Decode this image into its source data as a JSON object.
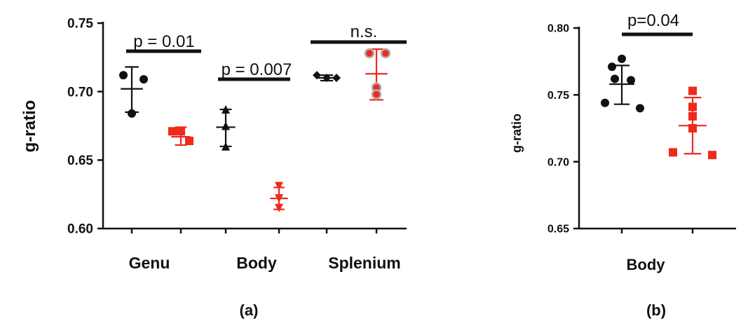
{
  "colors": {
    "control": "#111111",
    "treated": "#ee2a1c",
    "treated_edge": "#b0b0b0"
  },
  "chart_data": [
    {
      "panel": "(a)",
      "type": "scatter",
      "ylabel": "g-ratio",
      "ylim": [
        0.6,
        0.75
      ],
      "yticks": [
        "0.60",
        "0.65",
        "0.70",
        "0.75"
      ],
      "categories": [
        "Genu",
        "Body",
        "Splenium"
      ],
      "groups": [
        {
          "category": "Genu",
          "series": "control",
          "marker": "circle",
          "points": [
            0.712,
            0.709,
            0.684
          ],
          "mean": 0.702,
          "sd": [
            0.685,
            0.718
          ]
        },
        {
          "category": "Genu",
          "series": "treated",
          "marker": "square",
          "points": [
            0.671,
            0.671,
            0.664
          ],
          "mean": 0.667,
          "sd": [
            0.661,
            0.674
          ]
        },
        {
          "category": "Body",
          "series": "control",
          "marker": "triangle-up",
          "points": [
            0.687,
            0.675,
            0.66
          ],
          "mean": 0.674,
          "sd": [
            0.66,
            0.687
          ]
        },
        {
          "category": "Body",
          "series": "treated",
          "marker": "triangle-down",
          "points": [
            0.631,
            0.622,
            0.615
          ],
          "mean": 0.622,
          "sd": [
            0.614,
            0.63
          ]
        },
        {
          "category": "Splenium",
          "series": "control",
          "marker": "diamond",
          "points": [
            0.712,
            0.71,
            0.71
          ],
          "mean": 0.71,
          "sd": [
            0.708,
            0.712
          ]
        },
        {
          "category": "Splenium",
          "series": "treated",
          "marker": "circle-outlined",
          "points": [
            0.728,
            0.728,
            0.703,
            0.698
          ],
          "mean": 0.713,
          "sd": [
            0.694,
            0.731
          ]
        }
      ],
      "annotations": [
        {
          "text": "p = 0.01",
          "category": "Genu"
        },
        {
          "text": "p = 0.007",
          "category": "Body"
        },
        {
          "text": "n.s.",
          "category": "Splenium"
        }
      ]
    },
    {
      "panel": "(b)",
      "type": "scatter",
      "ylabel": "g-ratio",
      "ylim": [
        0.65,
        0.8
      ],
      "yticks": [
        "0.65",
        "0.70",
        "0.75",
        "0.80"
      ],
      "categories": [
        "Body"
      ],
      "groups": [
        {
          "category": "Body",
          "series": "control",
          "marker": "circle",
          "points": [
            0.777,
            0.771,
            0.762,
            0.761,
            0.744,
            0.74
          ],
          "mean": 0.758,
          "sd": [
            0.743,
            0.772
          ]
        },
        {
          "category": "Body",
          "series": "treated",
          "marker": "square",
          "points": [
            0.753,
            0.741,
            0.734,
            0.725,
            0.707,
            0.705
          ],
          "mean": 0.727,
          "sd": [
            0.706,
            0.748
          ]
        }
      ],
      "annotations": [
        {
          "text": "p=0.04",
          "category": "Body"
        }
      ]
    }
  ]
}
